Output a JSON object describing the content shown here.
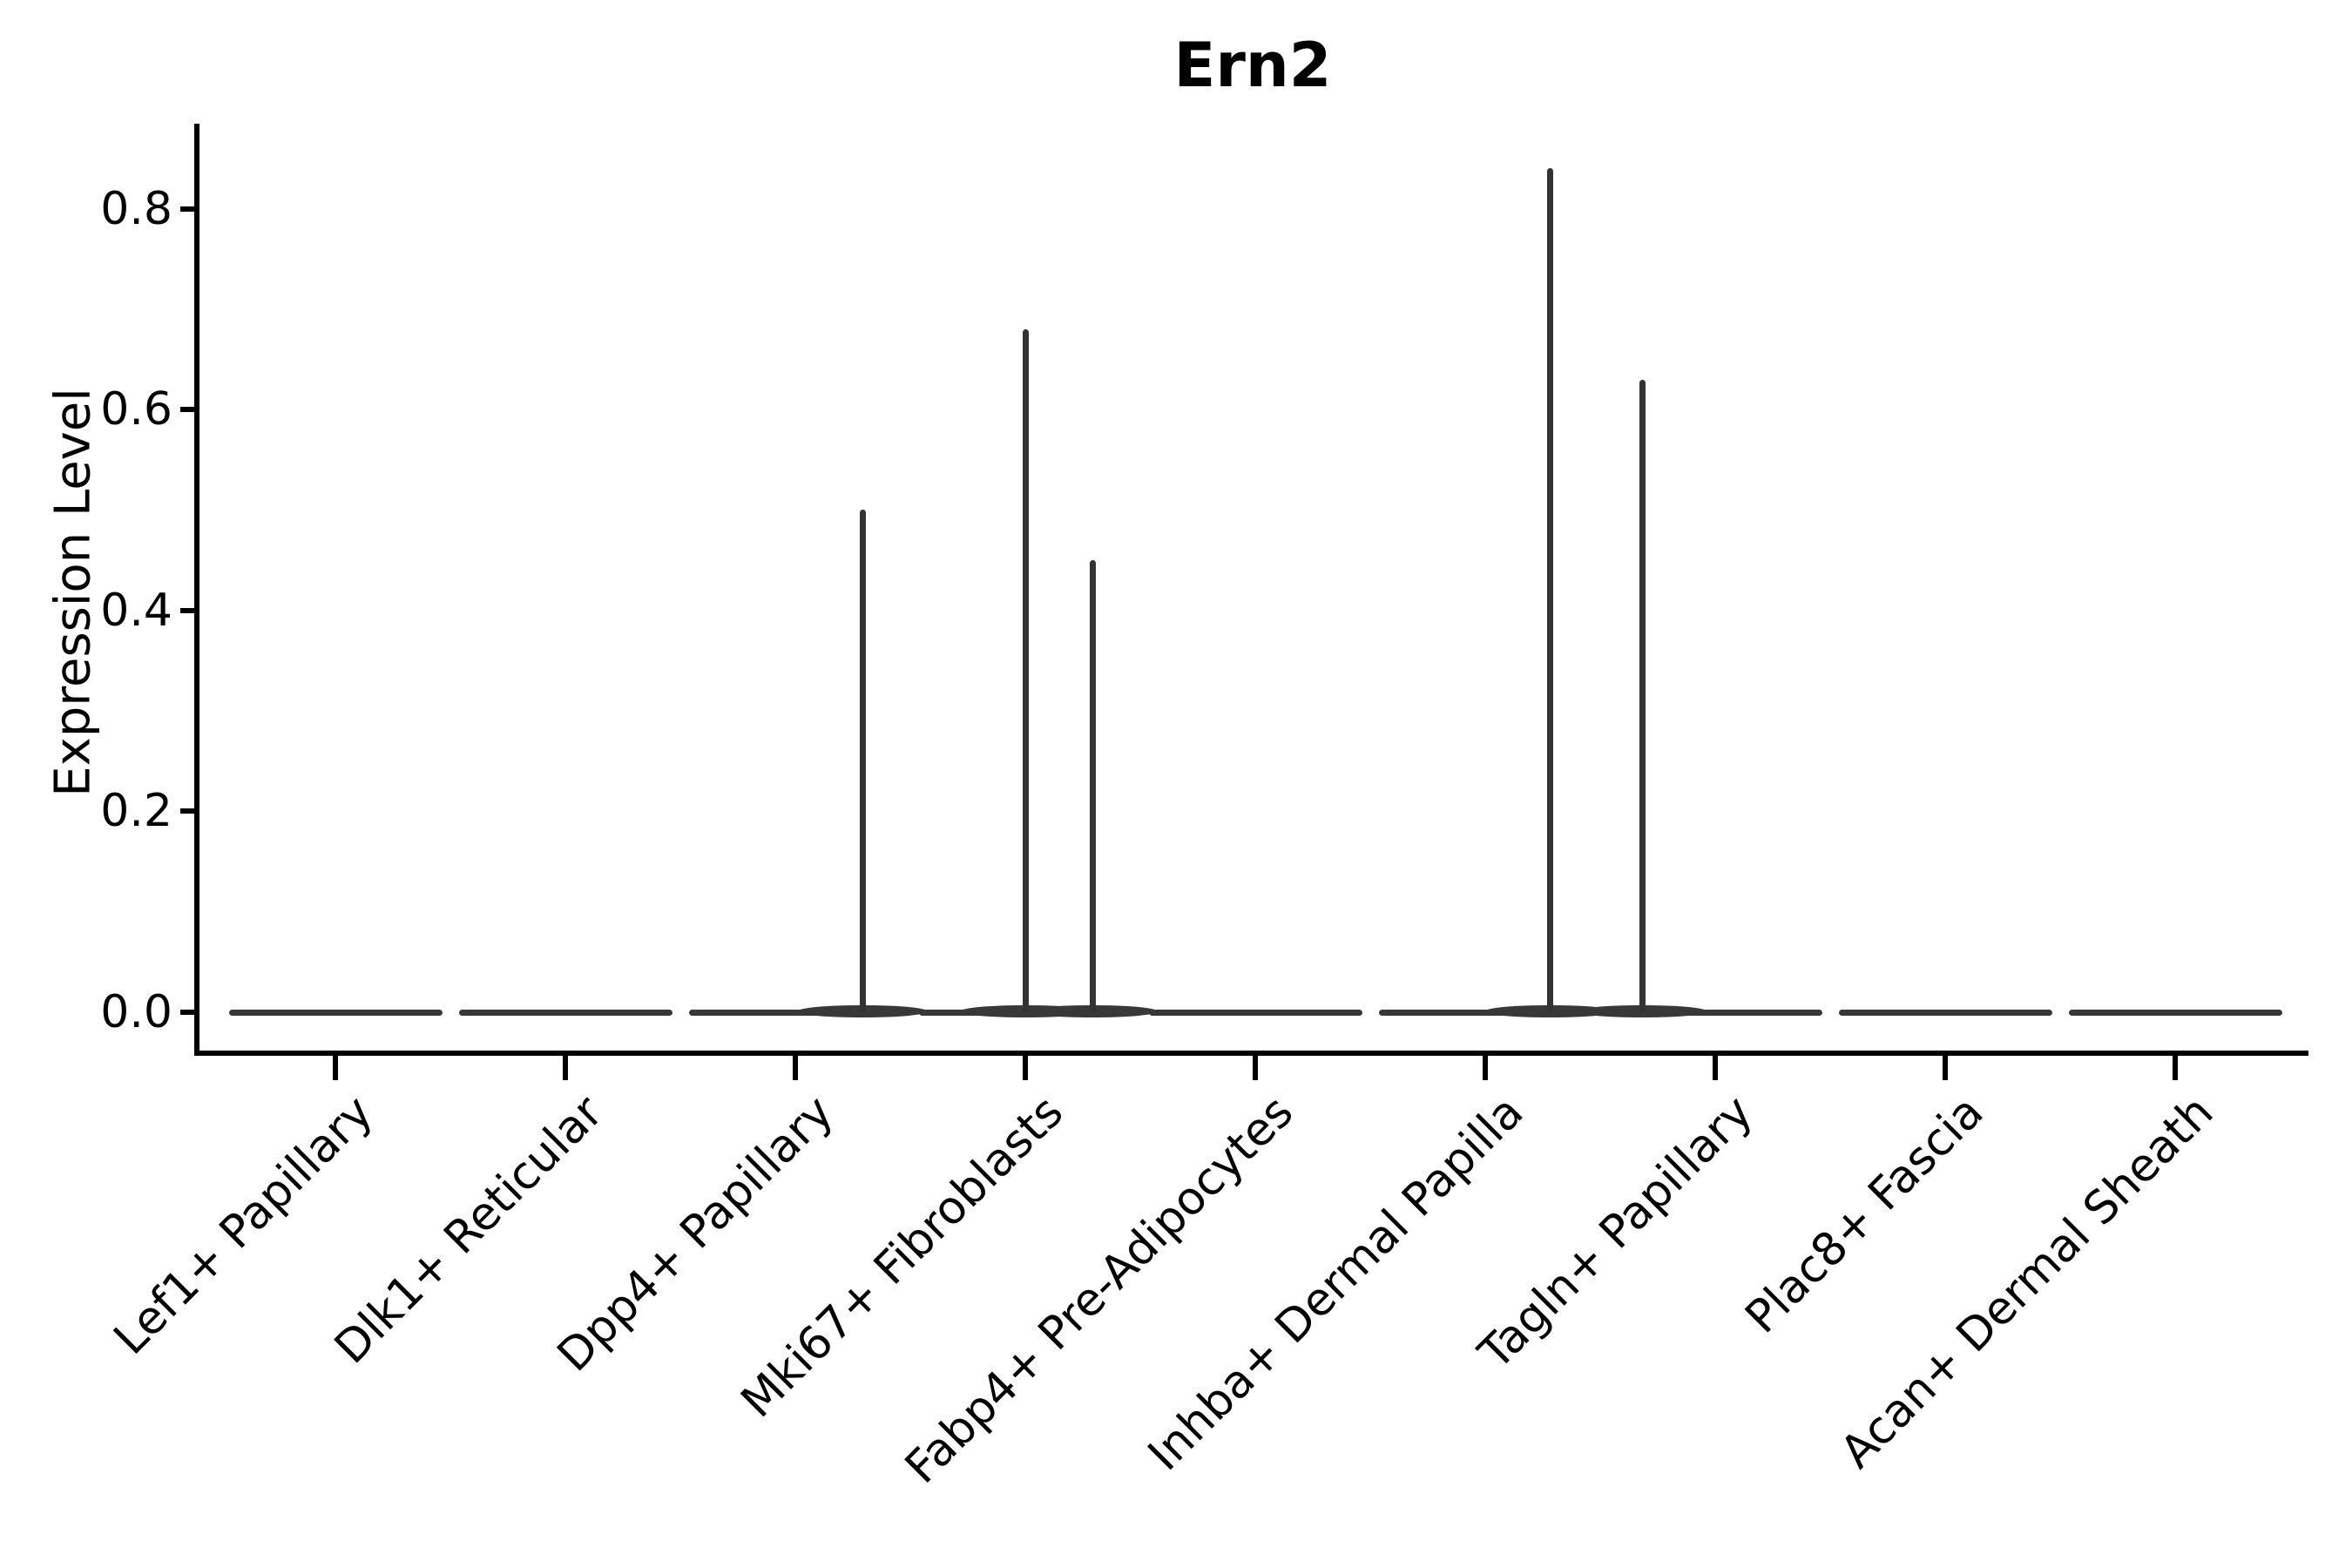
{
  "figure": {
    "title": "Ern2",
    "background": "#ffffff"
  },
  "style": {
    "violin_color": "#383838",
    "spike_color": "#333333",
    "axis_color": "#000000",
    "text_color": "#000000"
  },
  "chart_data": {
    "type": "violin",
    "title": "Ern2",
    "xlabel": "",
    "ylabel": "Expression Level",
    "ylim": [
      0,
      0.885
    ],
    "yticks": [
      0.0,
      0.2,
      0.4,
      0.6,
      0.8
    ],
    "ytick_labels": [
      "0.0",
      "0.2",
      "0.4",
      "0.6",
      "0.8"
    ],
    "x_tick_rotation": 45,
    "grid": false,
    "legend_position": "none",
    "categories": [
      "Lef1+ Papillary",
      "Dlk1+ Reticular",
      "Dpp4+ Papillary",
      "Mki67+ Fibroblasts",
      "Fabp4+ Pre-Adipocytes",
      "Inhba+ Dermal Papilla",
      "Tagln+ Papillary",
      "Plac8+ Fascia",
      "Acan+ Dermal Sheath"
    ],
    "violins": [
      {
        "category": "Lef1+ Papillary",
        "baseline_value": 0.0,
        "spikes": []
      },
      {
        "category": "Dlk1+ Reticular",
        "baseline_value": 0.0,
        "spikes": []
      },
      {
        "category": "Dpp4+ Papillary",
        "baseline_value": 0.0,
        "spikes": [
          {
            "max_value": 0.5,
            "offset_frac": 0.29
          }
        ]
      },
      {
        "category": "Mki67+ Fibroblasts",
        "baseline_value": 0.0,
        "spikes": [
          {
            "max_value": 0.68,
            "offset_frac": 0.0
          },
          {
            "max_value": 0.45,
            "offset_frac": 0.29
          }
        ]
      },
      {
        "category": "Fabp4+ Pre-Adipocytes",
        "baseline_value": 0.0,
        "spikes": []
      },
      {
        "category": "Inhba+ Dermal Papilla",
        "baseline_value": 0.0,
        "spikes": [
          {
            "max_value": 0.84,
            "offset_frac": 0.28
          }
        ]
      },
      {
        "category": "Tagln+ Papillary",
        "baseline_value": 0.0,
        "spikes": [
          {
            "max_value": 0.63,
            "offset_frac": -0.32
          }
        ]
      },
      {
        "category": "Plac8+ Fascia",
        "baseline_value": 0.0,
        "spikes": []
      },
      {
        "category": "Acan+ Dermal Sheath",
        "baseline_value": 0.0,
        "spikes": []
      }
    ]
  }
}
